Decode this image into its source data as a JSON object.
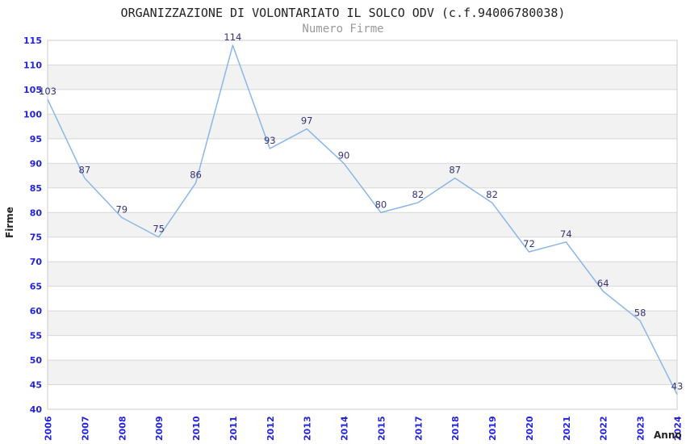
{
  "chart_data": {
    "type": "line",
    "title": "ORGANIZZAZIONE DI VOLONTARIATO IL SOLCO ODV (c.f.94006780038)",
    "subtitle": "Numero Firme",
    "xlabel": "Anno",
    "ylabel": "Firme",
    "x": [
      "2006",
      "2007",
      "2008",
      "2009",
      "2010",
      "2011",
      "2012",
      "2013",
      "2014",
      "2015",
      "2017",
      "2018",
      "2019",
      "2020",
      "2021",
      "2022",
      "2023",
      "2024"
    ],
    "values": [
      103,
      87,
      79,
      75,
      86,
      114,
      93,
      97,
      90,
      80,
      82,
      87,
      82,
      72,
      74,
      64,
      58,
      43
    ],
    "ylim": [
      40,
      115
    ],
    "ytick_step": 5,
    "grid": "horizontal-bands-alternating",
    "legend": "none",
    "colors": {
      "line": "#8ab6ea",
      "data_label": "#333377",
      "tick_label": "#2222dd",
      "band": "#f2f2f2",
      "gridline": "#d8d8d8",
      "plot_border": "#cccccc",
      "title": "#222222",
      "subtitle": "#999999",
      "axis_title": "#222222",
      "background": "#ffffff"
    }
  }
}
